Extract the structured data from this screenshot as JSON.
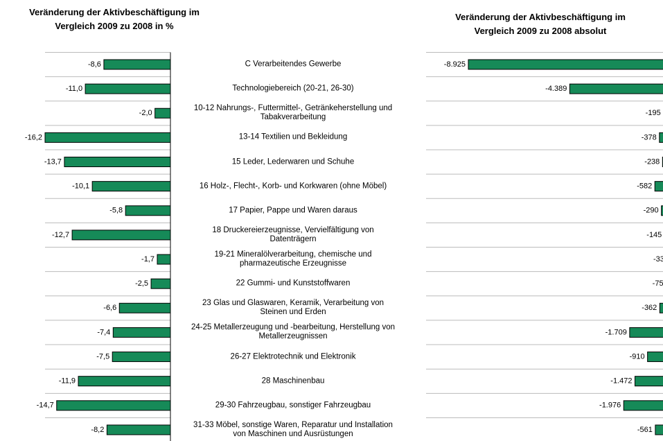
{
  "chart_data": [
    {
      "type": "bar",
      "orientation": "horizontal",
      "title": "Veränderung der Aktivbeschäftigung im\nVergleich 2009 zu 2008 in %",
      "categories": [
        "C Verarbeitendes Gewerbe",
        "Technologiebereich (20-21, 26-30)",
        "10-12 Nahrungs-, Futtermittel-, Getränkeherstellung und\nTabakverarbeitung",
        "13-14 Textilien und Bekleidung",
        "15 Leder, Lederwaren und Schuhe",
        "16 Holz-, Flecht-, Korb- und Korkwaren (ohne Möbel)",
        "17 Papier, Pappe und Waren daraus",
        "18 Druckereierzeugnisse, Vervielfältigung von\nDatenträgern",
        "19-21 Mineralölverarbeitung, chemische und\npharmazeutische Erzeugnisse",
        "22 Gummi- und Kunststoffwaren",
        "23 Glas und Glaswaren, Keramik, Verarbeitung von\nSteinen und Erden",
        "24-25 Metallerzeugung und -bearbeitung, Herstellung von\nMetallerzeugnissen",
        "26-27 Elektrotechnik und Elektronik",
        "28 Maschinenbau",
        "29-30 Fahrzeugbau, sonstiger Fahrzeugbau",
        "31-33 Möbel, sonstige Waren, Reparatur und Installation\nvon Maschinen und Ausrüstungen"
      ],
      "values": [
        -8.6,
        -11.0,
        -2.0,
        -16.2,
        -13.7,
        -10.1,
        -5.8,
        -12.7,
        -1.7,
        -2.5,
        -6.6,
        -7.4,
        -7.5,
        -11.9,
        -14.7,
        -8.2
      ],
      "value_labels": [
        "-8,6",
        "-11,0",
        "-2,0",
        "-16,2",
        "-13,7",
        "-10,1",
        "-5,8",
        "-12,7",
        "-1,7",
        "-2,5",
        "-6,6",
        "-7,4",
        "-7,5",
        "-11,9",
        "-14,7",
        "-8,2"
      ],
      "color": "#168a58",
      "xlim": [
        -16.2,
        0
      ],
      "grid": true
    },
    {
      "type": "bar",
      "orientation": "horizontal",
      "title": "Veränderung der Aktivbeschäftigung im\nVergleich 2009 zu 2008 absolut",
      "values": [
        -8925,
        -4389,
        -195,
        -378,
        -238,
        -582,
        -290,
        -145,
        -33,
        -75,
        -362,
        -1709,
        -910,
        -1472,
        -1976,
        -561
      ],
      "value_labels": [
        "-8.925",
        "-4.389",
        "-195",
        "-378",
        "-238",
        "-582",
        "-290",
        "-145",
        "-33",
        "-75",
        "-362",
        "-1.709",
        "-910",
        "-1.472",
        "-1.976",
        "-561"
      ],
      "color": "#168a58",
      "xlim": [
        -8925,
        0
      ],
      "grid": true
    }
  ]
}
